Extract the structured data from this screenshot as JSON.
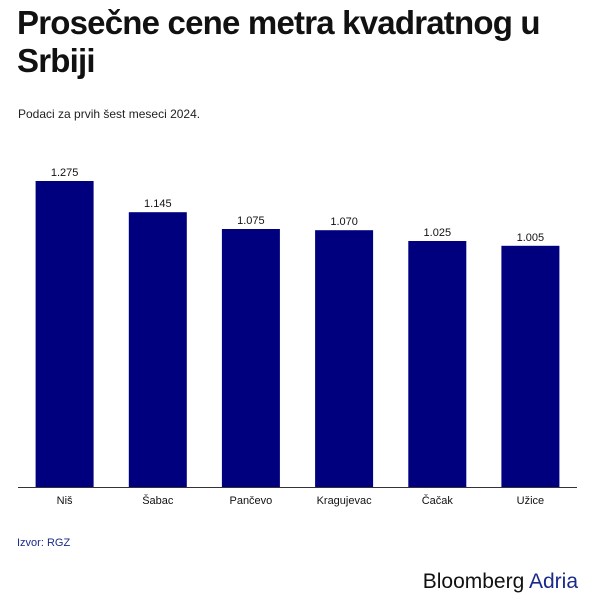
{
  "title": "Prosečne cene metra kvadratnog u Srbiji",
  "subtitle": "Podaci za prvih šest meseci 2024.",
  "source": "Izvor: RGZ",
  "brand": {
    "name": "Bloomberg",
    "suffix": "Adria"
  },
  "colors": {
    "bar": "#00007f",
    "axis": "#333333",
    "text": "#111111",
    "brand_accent": "#1a2a8a"
  },
  "chart_data": {
    "type": "bar",
    "categories": [
      "Niš",
      "Šabac",
      "Pančevo",
      "Kragujevac",
      "Čačak",
      "Užice"
    ],
    "values": [
      1275,
      1145,
      1075,
      1070,
      1025,
      1005
    ],
    "value_labels": [
      "1.275",
      "1.145",
      "1.075",
      "1.070",
      "1.025",
      "1.005"
    ],
    "title": "Prosečne cene metra kvadratnog u Srbiji",
    "subtitle": "Podaci za prvih šest meseci 2024.",
    "xlabel": "",
    "ylabel": "",
    "ylim": [
      0,
      1275
    ],
    "grid": false,
    "legend": "none"
  }
}
